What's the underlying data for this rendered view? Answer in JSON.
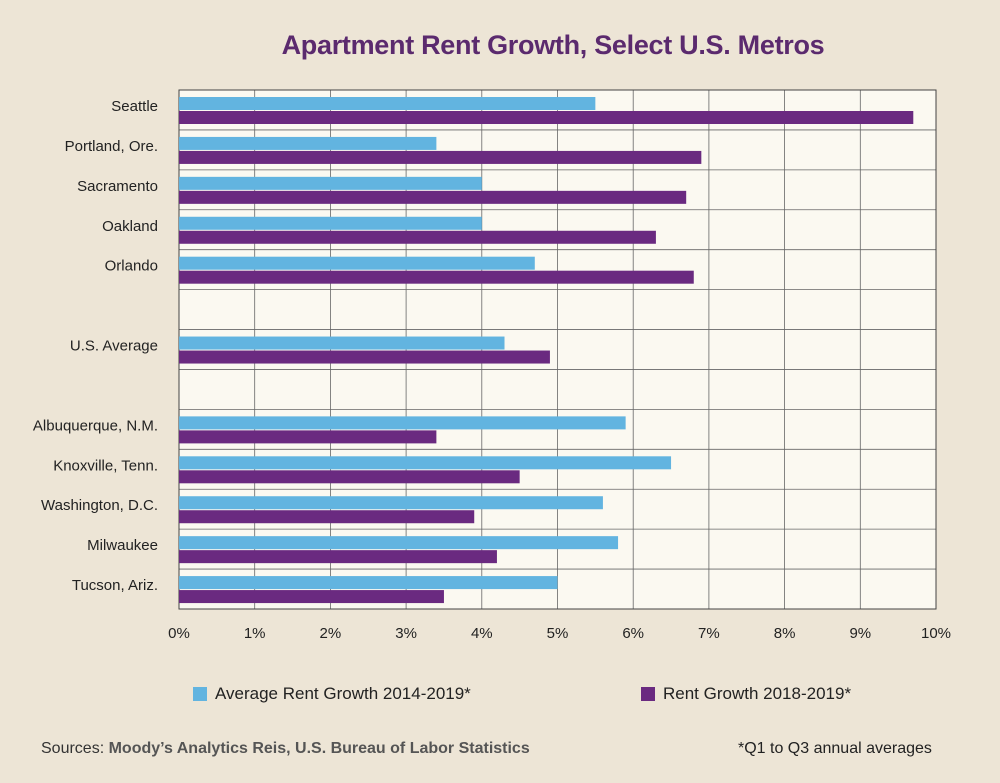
{
  "chart_data": {
    "type": "bar",
    "orientation": "horizontal",
    "title": "Apartment Rent Growth, Select U.S. Metros",
    "categories": [
      "Seattle",
      "Portland, Ore.",
      "Sacramento",
      "Oakland",
      "Orlando",
      "",
      "U.S. Average",
      "",
      "Albuquerque, N.M.",
      "Knoxville, Tenn.",
      "Washington, D.C.",
      "Milwaukee",
      "Tucson, Ariz."
    ],
    "series": [
      {
        "name": "Average Rent Growth 2014-2019*",
        "color": "#62b4e0",
        "values": [
          5.5,
          3.4,
          4.0,
          4.0,
          4.7,
          null,
          4.3,
          null,
          5.9,
          6.5,
          5.6,
          5.8,
          5.0
        ]
      },
      {
        "name": "Rent Growth 2018-2019*",
        "color": "#6a2a80",
        "values": [
          9.7,
          6.9,
          6.7,
          6.3,
          6.8,
          null,
          4.9,
          null,
          3.4,
          4.5,
          3.9,
          4.2,
          3.5
        ]
      }
    ],
    "x_ticks": [
      "0%",
      "1%",
      "2%",
      "3%",
      "4%",
      "5%",
      "6%",
      "7%",
      "8%",
      "9%",
      "10%"
    ],
    "xlim": [
      0,
      10
    ],
    "unit": "%",
    "grid": true,
    "legend_position": "bottom"
  },
  "sources": {
    "label": "Sources:",
    "value": "Moody’s Analytics Reis, U.S. Bureau of Labor Statistics"
  },
  "footnote": "*Q1 to Q3 annual averages",
  "colors": {
    "background": "#ede5d6",
    "plot_background": "#fbf9f1",
    "title": "#5b2a6e",
    "grid": "#666666"
  }
}
